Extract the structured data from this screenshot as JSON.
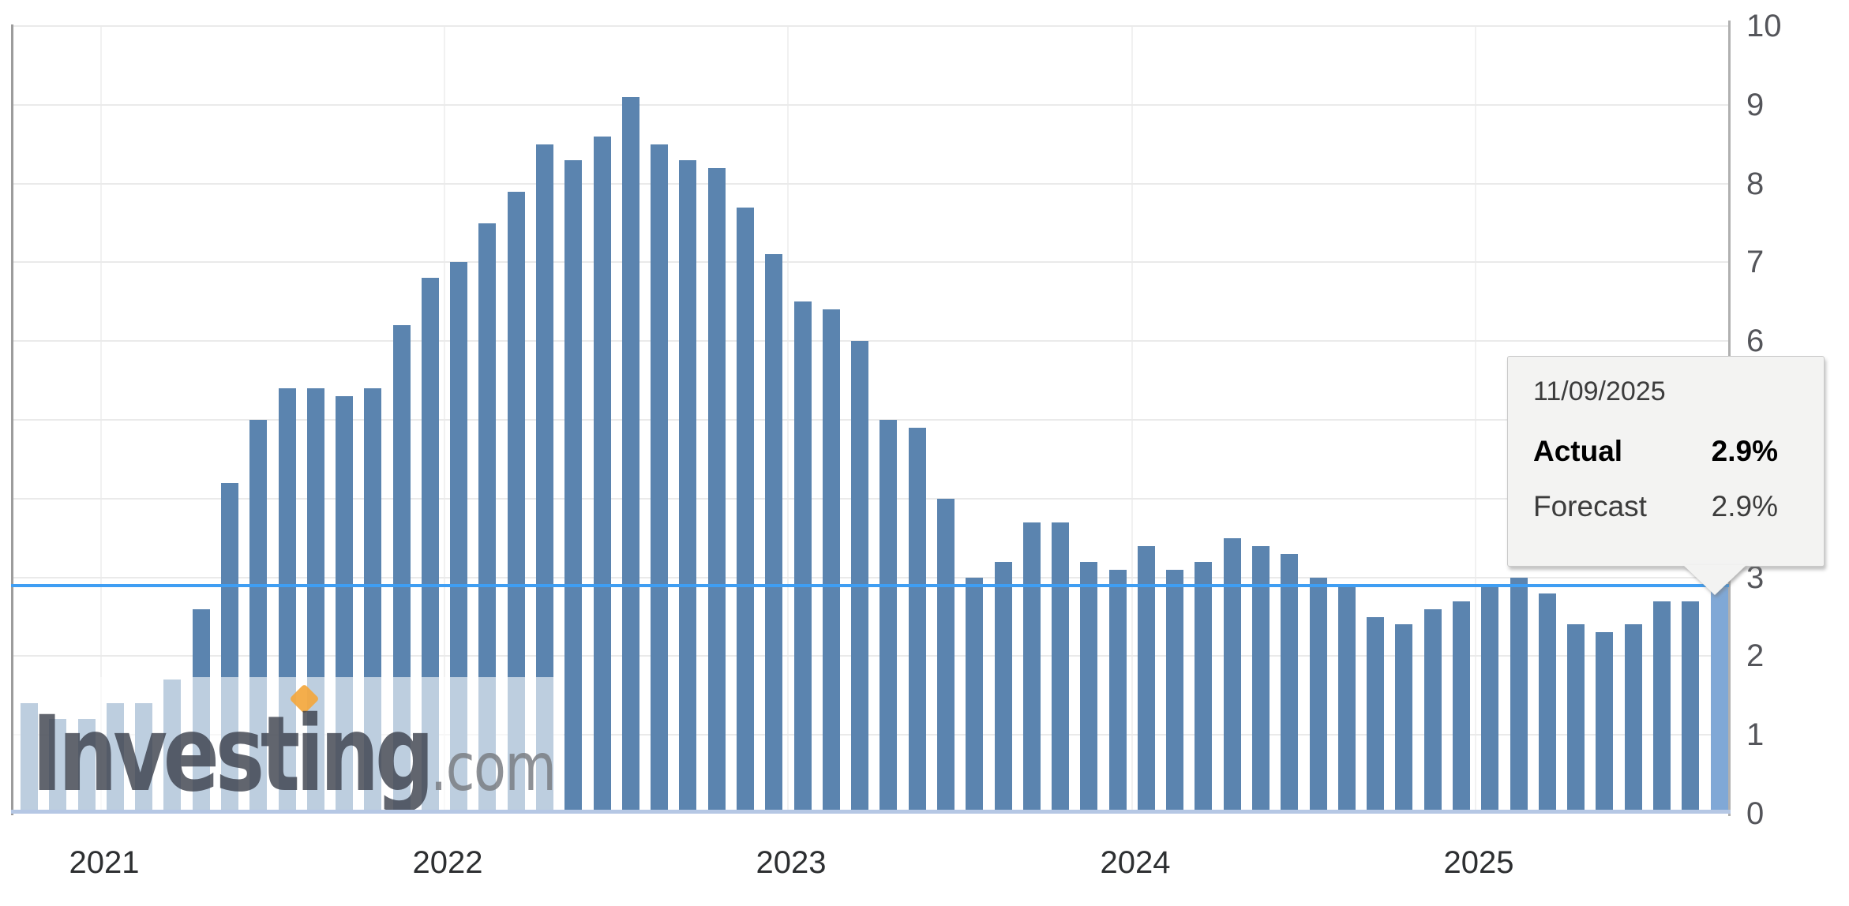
{
  "watermark": {
    "brand_bold": "Investing",
    "brand_suffix": ".com"
  },
  "tooltip": {
    "date": "11/09/2025",
    "actual_label": "Actual",
    "actual_value": "2.9%",
    "forecast_label": "Forecast",
    "forecast_value": "2.9%"
  },
  "colors": {
    "bar": "#5b84af",
    "bar_highlight": "#80a8d6",
    "current_value_line": "#3f9ef3",
    "bottom_axis_line": "#b5c7e4",
    "gridline": "#eaeaea",
    "year_gridline": "#f1f1f1",
    "axis": "#b0b0b0",
    "watermark_orange": "#f3a73d",
    "tooltip_background": "#f3f3f2"
  },
  "chart_data": {
    "type": "bar",
    "title": "",
    "xlabel": "",
    "ylabel": "",
    "ylim": [
      0,
      10
    ],
    "grid": true,
    "legend": false,
    "y_ticks": [
      0,
      1,
      2,
      3,
      4,
      5,
      6,
      7,
      8,
      9,
      10
    ],
    "x_tick_labels": [
      "2021",
      "2022",
      "2023",
      "2024",
      "2025"
    ],
    "reference_line_value": 2.9,
    "highlight_last_bar": true,
    "x": [
      "2020-10",
      "2020-11",
      "2020-12",
      "2021-01",
      "2021-02",
      "2021-03",
      "2021-04",
      "2021-05",
      "2021-06",
      "2021-07",
      "2021-08",
      "2021-09",
      "2021-10",
      "2021-11",
      "2021-12",
      "2022-01",
      "2022-02",
      "2022-03",
      "2022-04",
      "2022-05",
      "2022-06",
      "2022-07",
      "2022-08",
      "2022-09",
      "2022-10",
      "2022-11",
      "2022-12",
      "2023-01",
      "2023-02",
      "2023-03",
      "2023-04",
      "2023-05",
      "2023-06",
      "2023-07",
      "2023-08",
      "2023-09",
      "2023-10",
      "2023-11",
      "2023-12",
      "2024-01",
      "2024-02",
      "2024-03",
      "2024-04",
      "2024-05",
      "2024-06",
      "2024-07",
      "2024-08",
      "2024-09",
      "2024-10",
      "2024-11",
      "2024-12",
      "2025-01",
      "2025-02",
      "2025-03",
      "2025-04",
      "2025-05",
      "2025-06",
      "2025-07",
      "2025-08",
      "2025-09"
    ],
    "values": [
      1.4,
      1.2,
      1.2,
      1.4,
      1.4,
      1.7,
      2.6,
      4.2,
      5.0,
      5.4,
      5.4,
      5.3,
      5.4,
      6.2,
      6.8,
      7.0,
      7.5,
      7.9,
      8.5,
      8.3,
      8.6,
      9.1,
      8.5,
      8.3,
      8.2,
      7.7,
      7.1,
      6.5,
      6.4,
      6.0,
      5.0,
      4.9,
      4.0,
      3.0,
      3.2,
      3.7,
      3.7,
      3.2,
      3.1,
      3.4,
      3.1,
      3.2,
      3.5,
      3.4,
      3.3,
      3.0,
      2.9,
      2.5,
      2.4,
      2.6,
      2.7,
      2.9,
      3.0,
      2.8,
      2.4,
      2.3,
      2.4,
      2.7,
      2.7,
      2.9
    ]
  }
}
